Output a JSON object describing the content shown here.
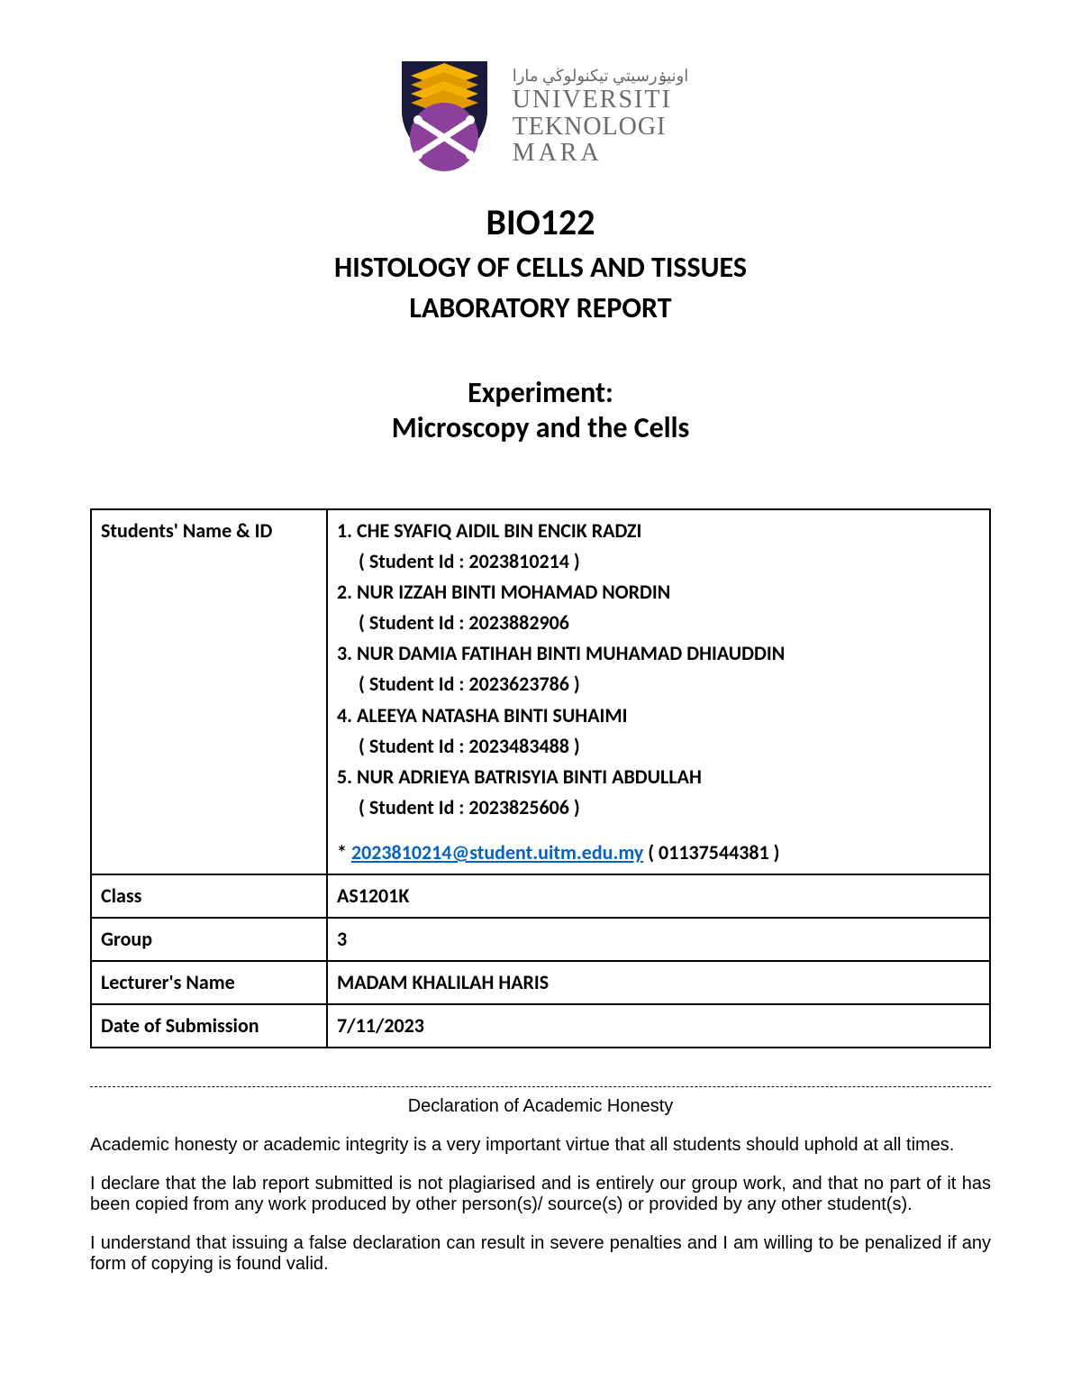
{
  "logo": {
    "colors": {
      "shield_dark": "#1a1a3d",
      "book_gold": "#f5b100",
      "circle_purple": "#8c3f9b",
      "swords_white": "#ffffff",
      "text_gray": "#6b6b6b"
    },
    "text_arabic": "اونيۏرسيتي تيكنولوڬي مارا",
    "text_l1": "UNIVERSITI",
    "text_l2": "TEKNOLOGI",
    "text_l3": "MARA"
  },
  "header": {
    "course_code": "BIO122",
    "course_title": "HISTOLOGY OF CELLS AND TISSUES",
    "report_line": "LABORATORY REPORT",
    "experiment_label": "Experiment:",
    "experiment_title": "Microscopy and the Cells"
  },
  "table": {
    "labels": {
      "students": "Students' Name & ID",
      "class": "Class",
      "group": "Group",
      "lecturer": "Lecturer's Name",
      "date": "Date of Submission"
    },
    "students": [
      {
        "n": "1.",
        "name": "CHE SYAFIQ AIDIL BIN ENCIK RADZI",
        "id_line": "( Student Id : 2023810214 )"
      },
      {
        "n": "2.",
        "name": "NUR IZZAH BINTI MOHAMAD NORDIN",
        "id_line": "( Student Id : 2023882906"
      },
      {
        "n": "3.",
        "name": "NUR DAMIA FATIHAH BINTI MUHAMAD DHIAUDDIN",
        "id_line": "( Student Id : 2023623786 )"
      },
      {
        "n": "4.",
        "name": "ALEEYA NATASHA BINTI SUHAIMI",
        "id_line": "(  Student Id : 2023483488 )"
      },
      {
        "n": "5.",
        "name": "NUR ADRIEYA BATRISYIA BINTI ABDULLAH",
        "id_line": "( Student Id : 2023825606 )"
      }
    ],
    "email_prefix": "* ",
    "email": "2023810214@student.uitm.edu.my",
    "email_suffix": " ( 01137544381 )",
    "class_value": "AS1201K",
    "group_value": "3",
    "lecturer_value": "MADAM KHALILAH HARIS",
    "date_value": "7/11/2023"
  },
  "declaration": {
    "title": "Declaration of Academic Honesty",
    "p1": "Academic honesty or academic integrity is a very important virtue that all students should uphold at all times.",
    "p2": "I declare that the lab report submitted is not plagiarised and is entirely our group work, and that no part of it has been copied from any work produced by other person(s)/ source(s) or provided by any other student(s).",
    "p3": "I understand that issuing a false declaration can result in severe penalties and I am willing to be penalized if any form of copying is found valid."
  }
}
